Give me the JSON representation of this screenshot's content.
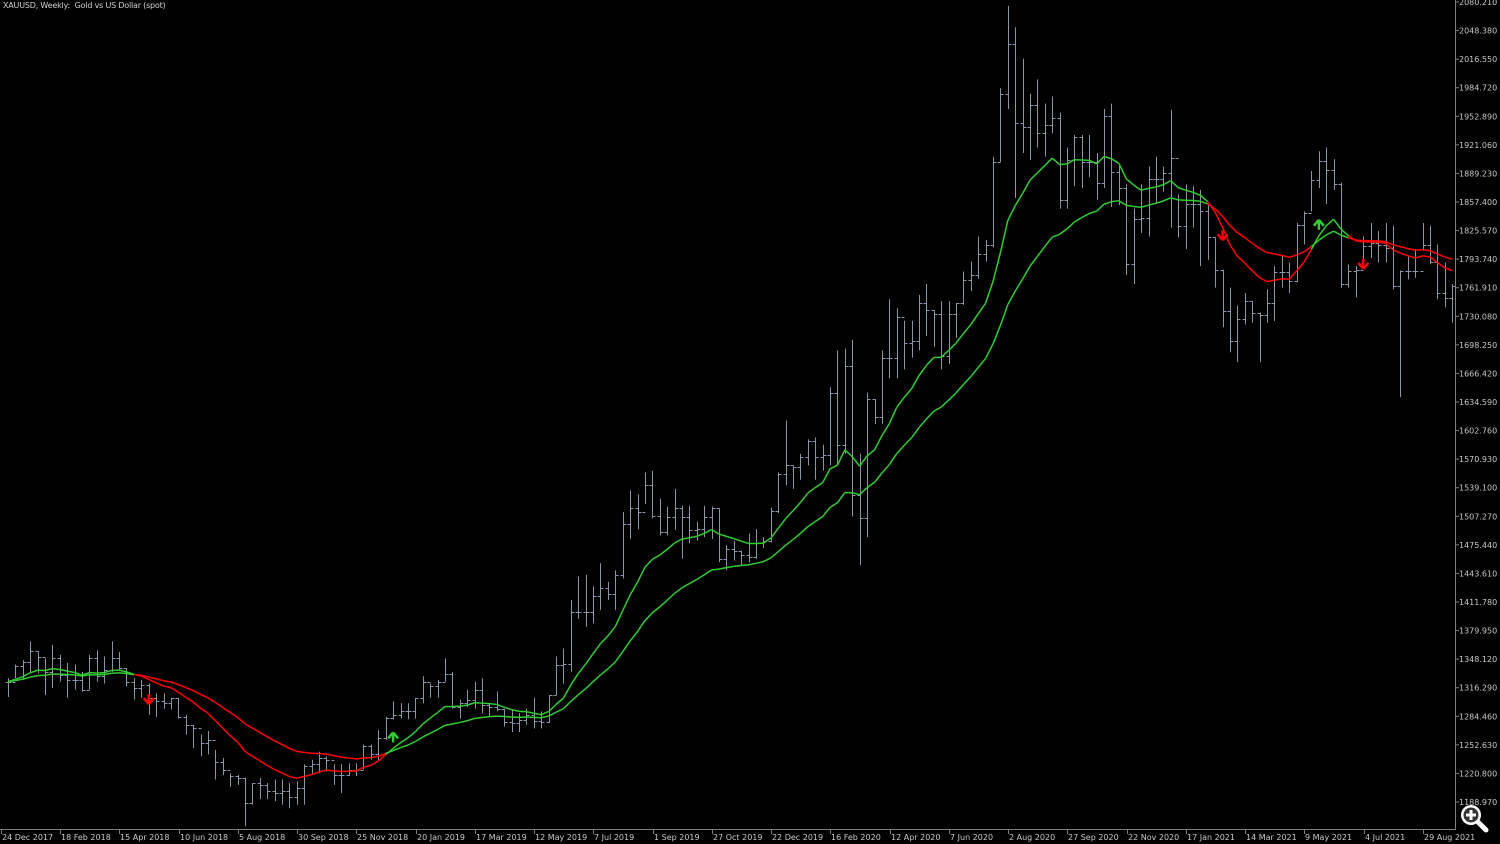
{
  "header": {
    "title": "XAUUSD, Weekly:  Gold vs US Dollar (spot)"
  },
  "colors": {
    "background": "#000000",
    "bars": "#8a96a8",
    "ma_up": "#32cd32",
    "ma_down": "#ff0000",
    "axis": "#808080",
    "text": "#c8c8c8"
  },
  "icons": {
    "zoom": "zoom-in-magnifier-icon",
    "buy_arrow": "arrow-up-icon",
    "sell_arrow": "arrow-down-icon"
  },
  "chart_data": {
    "type": "ohlc",
    "title": "XAUUSD, Weekly:  Gold vs US Dollar (spot)",
    "bar_fields": [
      "high",
      "low",
      "close"
    ],
    "ylim": [
      1188.97,
      2080.21
    ],
    "grid": false,
    "y_ticks": [
      "2080.210",
      "2048.380",
      "2016.550",
      "1984.720",
      "1952.890",
      "1921.060",
      "1889.230",
      "1857.400",
      "1825.570",
      "1793.740",
      "1761.910",
      "1730.080",
      "1698.250",
      "1666.420",
      "1634.590",
      "1602.760",
      "1570.930",
      "1539.100",
      "1507.270",
      "1475.440",
      "1443.610",
      "1411.780",
      "1379.950",
      "1348.120",
      "1316.290",
      "1284.460",
      "1252.630",
      "1220.800",
      "1188.970"
    ],
    "x_labels": [
      "24 Dec 2017",
      "18 Feb 2018",
      "15 Apr 2018",
      "10 Jun 2018",
      "5 Aug 2018",
      "30 Sep 2018",
      "25 Nov 2018",
      "20 Jan 2019",
      "17 Mar 2019",
      "12 May 2019",
      "7 Jul 2019",
      "1 Sep 2019",
      "27 Oct 2019",
      "22 Dec 2019",
      "16 Feb 2020",
      "12 Apr 2020",
      "7 Jun 2020",
      "2 Aug 2020",
      "27 Sep 2020",
      "22 Nov 2020",
      "17 Jan 2021",
      "14 Mar 2021",
      "9 May 2021",
      "4 Jul 2021",
      "29 Aug 2021"
    ],
    "bars": [
      [
        1327,
        1306,
        1323
      ],
      [
        1342,
        1327,
        1340
      ],
      [
        1347,
        1325,
        1345
      ],
      [
        1368,
        1334,
        1357
      ],
      [
        1357,
        1332,
        1351
      ],
      [
        1349,
        1308,
        1334
      ],
      [
        1364,
        1316,
        1349
      ],
      [
        1353,
        1323,
        1331
      ],
      [
        1344,
        1305,
        1325
      ],
      [
        1342,
        1314,
        1325
      ],
      [
        1334,
        1312,
        1314
      ],
      [
        1353,
        1314,
        1349
      ],
      [
        1358,
        1323,
        1329
      ],
      [
        1351,
        1321,
        1336
      ],
      [
        1368,
        1334,
        1349
      ],
      [
        1356,
        1336,
        1338
      ],
      [
        1338,
        1318,
        1323
      ],
      [
        1327,
        1303,
        1316
      ],
      [
        1325,
        1305,
        1319
      ],
      [
        1321,
        1286,
        1305
      ],
      [
        1310,
        1284,
        1301
      ],
      [
        1310,
        1293,
        1299
      ],
      [
        1305,
        1292,
        1305
      ],
      [
        1305,
        1282,
        1284
      ],
      [
        1286,
        1264,
        1275
      ],
      [
        1275,
        1249,
        1271
      ],
      [
        1264,
        1240,
        1255
      ],
      [
        1268,
        1242,
        1258
      ],
      [
        1247,
        1214,
        1234
      ],
      [
        1238,
        1219,
        1225
      ],
      [
        1221,
        1206,
        1218
      ],
      [
        1219,
        1208,
        1216
      ],
      [
        1216,
        1162,
        1188
      ],
      [
        1210,
        1186,
        1210
      ],
      [
        1216,
        1192,
        1208
      ],
      [
        1210,
        1192,
        1201
      ],
      [
        1214,
        1190,
        1199
      ],
      [
        1214,
        1186,
        1201
      ],
      [
        1210,
        1182,
        1195
      ],
      [
        1212,
        1186,
        1205
      ],
      [
        1231,
        1186,
        1229
      ],
      [
        1236,
        1219,
        1231
      ],
      [
        1245,
        1221,
        1238
      ],
      [
        1240,
        1223,
        1236
      ],
      [
        1231,
        1208,
        1219
      ],
      [
        1231,
        1199,
        1219
      ],
      [
        1232,
        1218,
        1225
      ],
      [
        1232,
        1218,
        1225
      ],
      [
        1253,
        1225,
        1251
      ],
      [
        1253,
        1236,
        1242
      ],
      [
        1269,
        1236,
        1260
      ],
      [
        1284,
        1258,
        1282
      ],
      [
        1301,
        1281,
        1286
      ],
      [
        1299,
        1282,
        1290
      ],
      [
        1299,
        1281,
        1290
      ],
      [
        1305,
        1282,
        1305
      ],
      [
        1329,
        1299,
        1323
      ],
      [
        1321,
        1305,
        1318
      ],
      [
        1325,
        1305,
        1323
      ],
      [
        1349,
        1323,
        1332
      ],
      [
        1334,
        1293,
        1295
      ],
      [
        1303,
        1282,
        1299
      ],
      [
        1314,
        1295,
        1303
      ],
      [
        1323,
        1293,
        1314
      ],
      [
        1327,
        1288,
        1297
      ],
      [
        1299,
        1284,
        1295
      ],
      [
        1312,
        1290,
        1293
      ],
      [
        1293,
        1273,
        1278
      ],
      [
        1292,
        1267,
        1277
      ],
      [
        1288,
        1267,
        1280
      ],
      [
        1293,
        1275,
        1286
      ],
      [
        1305,
        1271,
        1279
      ],
      [
        1290,
        1271,
        1278
      ],
      [
        1308,
        1277,
        1308
      ],
      [
        1351,
        1308,
        1342
      ],
      [
        1360,
        1321,
        1343
      ],
      [
        1414,
        1334,
        1401
      ],
      [
        1440,
        1393,
        1401
      ],
      [
        1442,
        1384,
        1401
      ],
      [
        1429,
        1388,
        1418
      ],
      [
        1455,
        1403,
        1427
      ],
      [
        1434,
        1414,
        1421
      ],
      [
        1447,
        1403,
        1442
      ],
      [
        1512,
        1438,
        1499
      ],
      [
        1536,
        1482,
        1516
      ],
      [
        1532,
        1493,
        1512
      ],
      [
        1556,
        1521,
        1542
      ],
      [
        1558,
        1505,
        1508
      ],
      [
        1527,
        1486,
        1490
      ],
      [
        1518,
        1486,
        1506
      ],
      [
        1538,
        1492,
        1516
      ],
      [
        1519,
        1460,
        1506
      ],
      [
        1519,
        1477,
        1492
      ],
      [
        1501,
        1480,
        1493
      ],
      [
        1519,
        1484,
        1506
      ],
      [
        1518,
        1482,
        1516
      ],
      [
        1516,
        1456,
        1460
      ],
      [
        1475,
        1447,
        1471
      ],
      [
        1480,
        1458,
        1469
      ],
      [
        1469,
        1453,
        1464
      ],
      [
        1488,
        1456,
        1462
      ],
      [
        1493,
        1460,
        1477
      ],
      [
        1484,
        1472,
        1480
      ],
      [
        1517,
        1478,
        1513
      ],
      [
        1556,
        1511,
        1554
      ],
      [
        1614,
        1542,
        1564
      ],
      [
        1564,
        1538,
        1562
      ],
      [
        1577,
        1548,
        1573
      ],
      [
        1593,
        1564,
        1591
      ],
      [
        1595,
        1548,
        1573
      ],
      [
        1587,
        1558,
        1575
      ],
      [
        1651,
        1564,
        1645
      ],
      [
        1692,
        1564,
        1587
      ],
      [
        1694,
        1577,
        1675
      ],
      [
        1704,
        1507,
        1531
      ],
      [
        1577,
        1453,
        1505
      ],
      [
        1645,
        1484,
        1638
      ],
      [
        1638,
        1610,
        1618
      ],
      [
        1692,
        1610,
        1684
      ],
      [
        1749,
        1661,
        1684
      ],
      [
        1739,
        1661,
        1729
      ],
      [
        1725,
        1671,
        1700
      ],
      [
        1725,
        1684,
        1702
      ],
      [
        1754,
        1692,
        1745
      ],
      [
        1766,
        1708,
        1737
      ],
      [
        1737,
        1696,
        1733
      ],
      [
        1747,
        1671,
        1686
      ],
      [
        1747,
        1677,
        1733
      ],
      [
        1745,
        1706,
        1745
      ],
      [
        1780,
        1743,
        1770
      ],
      [
        1791,
        1758,
        1776
      ],
      [
        1819,
        1772,
        1799
      ],
      [
        1815,
        1791,
        1809
      ],
      [
        1908,
        1807,
        1902
      ],
      [
        1984,
        1902,
        1978
      ],
      [
        2076,
        1961,
        2033
      ],
      [
        2052,
        1862,
        1945
      ],
      [
        2017,
        1912,
        1941
      ],
      [
        1978,
        1904,
        1965
      ],
      [
        1994,
        1918,
        1934
      ],
      [
        1967,
        1908,
        1943
      ],
      [
        1975,
        1934,
        1951
      ],
      [
        1957,
        1850,
        1860
      ],
      [
        1918,
        1850,
        1904
      ],
      [
        1932,
        1875,
        1930
      ],
      [
        1932,
        1873,
        1902
      ],
      [
        1932,
        1885,
        1902
      ],
      [
        1912,
        1860,
        1879
      ],
      [
        1961,
        1873,
        1953
      ],
      [
        1967,
        1852,
        1891
      ],
      [
        1899,
        1854,
        1873
      ],
      [
        1877,
        1776,
        1788
      ],
      [
        1850,
        1766,
        1838
      ],
      [
        1877,
        1823,
        1840
      ],
      [
        1897,
        1819,
        1883
      ],
      [
        1908,
        1856,
        1883
      ],
      [
        1897,
        1869,
        1890
      ],
      [
        1960,
        1829,
        1906
      ],
      [
        1866,
        1818,
        1831
      ],
      [
        1877,
        1805,
        1855
      ],
      [
        1875,
        1829,
        1855
      ],
      [
        1871,
        1786,
        1847
      ],
      [
        1856,
        1793,
        1818
      ],
      [
        1818,
        1762,
        1782
      ],
      [
        1782,
        1718,
        1736
      ],
      [
        1762,
        1690,
        1703
      ],
      [
        1742,
        1679,
        1727
      ],
      [
        1756,
        1721,
        1747
      ],
      [
        1747,
        1723,
        1734
      ],
      [
        1734,
        1679,
        1731
      ],
      [
        1760,
        1723,
        1745
      ],
      [
        1786,
        1725,
        1779
      ],
      [
        1799,
        1762,
        1779
      ],
      [
        1790,
        1756,
        1769
      ],
      [
        1834,
        1768,
        1832
      ],
      [
        1847,
        1810,
        1845
      ],
      [
        1892,
        1847,
        1882
      ],
      [
        1914,
        1873,
        1903
      ],
      [
        1918,
        1855,
        1893
      ],
      [
        1905,
        1871,
        1877
      ],
      [
        1879,
        1762,
        1766
      ],
      [
        1788,
        1762,
        1781
      ],
      [
        1786,
        1751,
        1782
      ],
      [
        1819,
        1788,
        1808
      ],
      [
        1834,
        1795,
        1812
      ],
      [
        1825,
        1790,
        1810
      ],
      [
        1834,
        1790,
        1806
      ],
      [
        1831,
        1760,
        1764
      ],
      [
        1781,
        1640,
        1781
      ],
      [
        1797,
        1771,
        1781
      ],
      [
        1805,
        1773,
        1781
      ],
      [
        1834,
        1803,
        1810
      ],
      [
        1831,
        1788,
        1790
      ],
      [
        1810,
        1749,
        1756
      ],
      [
        1790,
        1740,
        1751
      ],
      [
        1766,
        1723,
        1764
      ]
    ]
  }
}
